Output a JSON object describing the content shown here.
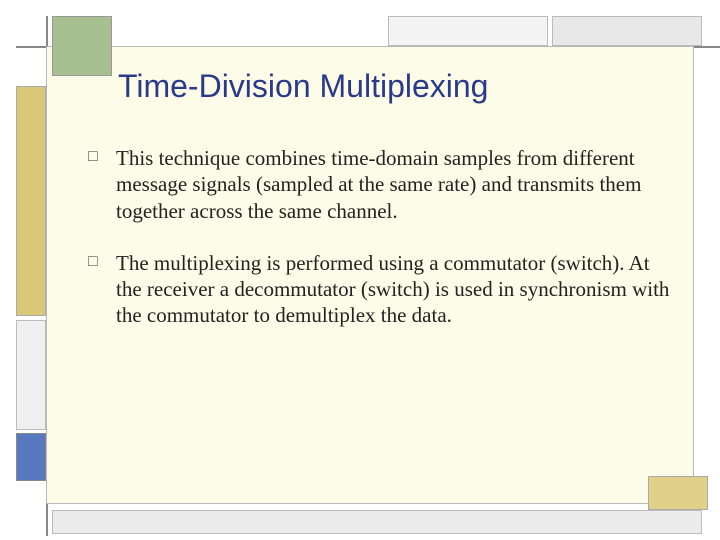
{
  "slide": {
    "title": "Time-Division Multiplexing",
    "bullets": [
      "This technique combines time-domain samples from different message signals (sampled at the same rate) and transmits them together across the same channel.",
      "The multiplexing is performed using a commutator (switch). At the receiver a decommutator (switch) is used in synchronism with the commutator to demultiplex the data."
    ]
  },
  "style": {
    "title_color": "#2a3a8a",
    "title_fontsize": 32,
    "body_fontsize": 21,
    "body_color": "#222222",
    "panel_bg": "#fdfce8",
    "blocks": {
      "green": "#a8c090",
      "ochre": "#d8c878",
      "blue": "#5878c0",
      "grey": "#ececec"
    }
  }
}
